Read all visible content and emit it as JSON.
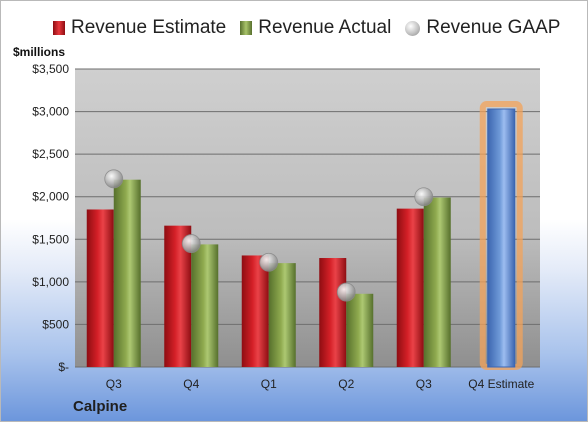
{
  "legend": {
    "estimate": "Revenue Estimate",
    "actual": "Revenue Actual",
    "gaap": "Revenue GAAP"
  },
  "unit_label": "$millions",
  "company": "Calpine",
  "colors": {
    "estimate": "#d42027",
    "actual": "#8faa4f",
    "gaap": "#b8b8b8",
    "forecast": "#6f9ad8",
    "forecast_glow": "#f3a35a"
  },
  "chart_data": {
    "type": "bar",
    "categories": [
      "Q3",
      "Q4",
      "Q1",
      "Q2",
      "Q3",
      "Q4 Estimate"
    ],
    "series": [
      {
        "name": "Revenue Estimate",
        "values": [
          1850,
          1660,
          1310,
          1280,
          1860,
          null
        ]
      },
      {
        "name": "Revenue Actual",
        "values": [
          2200,
          1440,
          1220,
          860,
          1990,
          3030
        ]
      },
      {
        "name": "Revenue GAAP",
        "values": [
          2210,
          1450,
          1230,
          880,
          2000,
          null
        ]
      }
    ],
    "ylabel": "$millions",
    "ylim": [
      0,
      3500
    ],
    "yticks": [
      0,
      500,
      1000,
      1500,
      2000,
      2500,
      3000,
      3500
    ],
    "ytick_labels": [
      "$-",
      "$500",
      "$1,000",
      "$1,500",
      "$2,000",
      "$2,500",
      "$3,000",
      "$3,500"
    ],
    "grid": true,
    "legend_position": "top"
  }
}
